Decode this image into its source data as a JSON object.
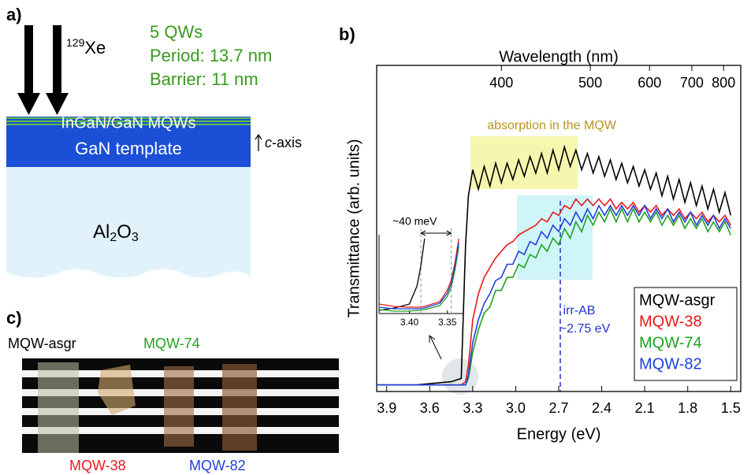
{
  "panel_a": {
    "label": "a)",
    "ion": [
      "129",
      "Xe"
    ],
    "specs": [
      "5 QWs",
      "Period: 13.7 nm",
      "Barrier: 11 nm"
    ],
    "layer_mqw": "InGaN/GaN MQWs",
    "layer_template": "GaN template",
    "axis": [
      "c",
      "-axis"
    ],
    "substrate": [
      "Al",
      "2",
      "O",
      "3"
    ]
  },
  "panel_b": {
    "label": "b)"
  },
  "chart_data": [
    {
      "type": "line",
      "x_label": "Energy (eV)",
      "x2_label": "Wavelength (nm)",
      "y_label": "Transmittance (arb. units)",
      "xlim": [
        3.97,
        1.43
      ],
      "xticks": [
        3.9,
        3.6,
        3.3,
        {
          "value": 3,
          "label": "3.0"
        },
        2.7,
        2.4,
        2.1,
        1.8,
        1.5
      ],
      "x2ticks": [
        400,
        500,
        600,
        700,
        800
      ],
      "ylim": [
        0,
        1
      ],
      "legend": "lower right",
      "annotations": [
        "absorption in the MQW",
        "irr-AB",
        "~2.75 eV"
      ],
      "x": [
        3.97,
        3.7,
        3.45,
        3.38,
        3.35,
        3.33,
        3.3,
        3.26,
        3.22,
        3.18,
        3.14,
        3.1,
        3.06,
        3.02,
        2.98,
        2.94,
        2.9,
        2.86,
        2.82,
        2.78,
        2.74,
        2.7,
        2.66,
        2.62,
        2.58,
        2.54,
        2.5,
        2.46,
        2.42,
        2.38,
        2.34,
        2.3,
        2.26,
        2.22,
        2.18,
        2.14,
        2.1,
        2.06,
        2.02,
        1.98,
        1.94,
        1.9,
        1.86,
        1.82,
        1.78,
        1.74,
        1.7,
        1.66,
        1.62,
        1.58,
        1.54,
        1.5
      ],
      "series": [
        {
          "name": "MQW-asgr",
          "color": "#000000",
          "values": [
            0.02,
            0.02,
            0.03,
            0.04,
            0.45,
            0.6,
            0.68,
            0.62,
            0.69,
            0.63,
            0.7,
            0.64,
            0.7,
            0.65,
            0.71,
            0.66,
            0.72,
            0.67,
            0.73,
            0.67,
            0.74,
            0.68,
            0.75,
            0.69,
            0.74,
            0.68,
            0.73,
            0.67,
            0.72,
            0.66,
            0.71,
            0.65,
            0.7,
            0.64,
            0.69,
            0.63,
            0.68,
            0.62,
            0.67,
            0.6,
            0.66,
            0.59,
            0.65,
            0.58,
            0.64,
            0.57,
            0.63,
            0.56,
            0.62,
            0.55,
            0.61,
            0.54
          ]
        },
        {
          "name": "MQW-38",
          "color": "#e8191b",
          "values": [
            0.02,
            0.02,
            0.02,
            0.02,
            0.03,
            0.08,
            0.22,
            0.3,
            0.35,
            0.38,
            0.41,
            0.43,
            0.45,
            0.46,
            0.48,
            0.49,
            0.5,
            0.51,
            0.53,
            0.52,
            0.55,
            0.54,
            0.57,
            0.56,
            0.59,
            0.57,
            0.59,
            0.57,
            0.59,
            0.57,
            0.59,
            0.56,
            0.58,
            0.56,
            0.58,
            0.55,
            0.57,
            0.55,
            0.57,
            0.54,
            0.56,
            0.54,
            0.56,
            0.53,
            0.55,
            0.53,
            0.55,
            0.52,
            0.54,
            0.52,
            0.54,
            0.51
          ]
        },
        {
          "name": "MQW-74",
          "color": "#1fa31f",
          "values": [
            0.02,
            0.02,
            0.02,
            0.02,
            0.02,
            0.04,
            0.12,
            0.19,
            0.24,
            0.26,
            0.31,
            0.31,
            0.35,
            0.35,
            0.39,
            0.38,
            0.42,
            0.41,
            0.45,
            0.43,
            0.47,
            0.45,
            0.5,
            0.47,
            0.52,
            0.49,
            0.54,
            0.51,
            0.55,
            0.52,
            0.56,
            0.52,
            0.56,
            0.52,
            0.56,
            0.52,
            0.55,
            0.52,
            0.55,
            0.51,
            0.54,
            0.51,
            0.54,
            0.5,
            0.53,
            0.5,
            0.53,
            0.49,
            0.52,
            0.49,
            0.52,
            0.48
          ]
        },
        {
          "name": "MQW-82",
          "color": "#2040e0",
          "values": [
            0.02,
            0.02,
            0.02,
            0.02,
            0.02,
            0.05,
            0.15,
            0.22,
            0.27,
            0.3,
            0.34,
            0.35,
            0.39,
            0.39,
            0.43,
            0.42,
            0.46,
            0.45,
            0.49,
            0.47,
            0.51,
            0.49,
            0.53,
            0.51,
            0.55,
            0.52,
            0.56,
            0.53,
            0.57,
            0.54,
            0.57,
            0.54,
            0.57,
            0.54,
            0.57,
            0.54,
            0.57,
            0.53,
            0.56,
            0.53,
            0.56,
            0.52,
            0.55,
            0.52,
            0.55,
            0.51,
            0.54,
            0.51,
            0.54,
            0.5,
            0.53,
            0.5
          ]
        }
      ]
    },
    {
      "type": "line",
      "xlim": [
        3.44,
        3.33
      ],
      "ylim": [
        0,
        1
      ],
      "xticks": [
        {
          "value": 3.4,
          "label": "3.40"
        },
        3.35
      ],
      "vlines": [
        3.385,
        3.345
      ],
      "annotation": "~40 meV",
      "x": [
        3.44,
        3.42,
        3.4,
        3.39,
        3.385,
        3.38,
        3.36,
        3.35,
        3.345,
        3.34,
        3.335
      ],
      "series": [
        {
          "color": "#000000",
          "values": [
            0.04,
            0.07,
            0.12,
            0.35,
            0.6,
            0.95,
            null,
            null,
            null,
            null,
            null
          ]
        },
        {
          "color": "#e8191b",
          "values": [
            0.12,
            0.09,
            0.08,
            0.08,
            0.08,
            0.09,
            0.15,
            0.3,
            0.42,
            0.65,
            0.95
          ]
        },
        {
          "color": "#1fa31f",
          "values": [
            0.05,
            0.03,
            0.03,
            0.04,
            0.04,
            0.05,
            0.1,
            0.22,
            0.33,
            0.55,
            0.85
          ]
        },
        {
          "color": "#2040e0",
          "values": [
            0.08,
            0.06,
            0.06,
            0.06,
            0.06,
            0.07,
            0.13,
            0.26,
            0.38,
            0.6,
            0.9
          ]
        }
      ]
    }
  ],
  "panel_c": {
    "label": "c)",
    "samples": [
      "MQW-asgr",
      "MQW-74",
      "MQW-38",
      "MQW-82"
    ]
  }
}
